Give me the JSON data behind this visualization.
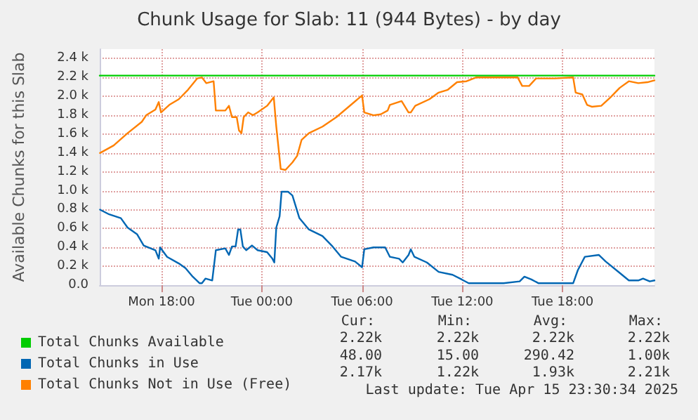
{
  "chart_data": {
    "type": "line",
    "title": "Chunk Usage for Slab: 11 (944 Bytes) - by day",
    "ylabel": "Available Chunks for this Slab",
    "xlim": [
      "2025-04-14T14:18",
      "2025-04-15T23:30"
    ],
    "xticks": [
      {
        "value": "2025-04-14T18:00",
        "label": "Mon 18:00"
      },
      {
        "value": "2025-04-15T00:00",
        "label": "Tue 00:00"
      },
      {
        "value": "2025-04-15T06:00",
        "label": "Tue 06:00"
      },
      {
        "value": "2025-04-15T12:00",
        "label": "Tue 12:00"
      },
      {
        "value": "2025-04-15T18:00",
        "label": "Tue 18:00"
      }
    ],
    "ylim": [
      0,
      2500
    ],
    "yticks": [
      {
        "value": 0,
        "label": "0.0"
      },
      {
        "value": 200,
        "label": "0.2 k"
      },
      {
        "value": 400,
        "label": "0.4 k"
      },
      {
        "value": 600,
        "label": "0.6 k"
      },
      {
        "value": 800,
        "label": "0.8 k"
      },
      {
        "value": 1000,
        "label": "1.0 k"
      },
      {
        "value": 1200,
        "label": "1.2 k"
      },
      {
        "value": 1400,
        "label": "1.4 k"
      },
      {
        "value": 1600,
        "label": "1.6 k"
      },
      {
        "value": 1800,
        "label": "1.8 k"
      },
      {
        "value": 2000,
        "label": "2.0 k"
      },
      {
        "value": 2200,
        "label": "2.2 k"
      },
      {
        "value": 2400,
        "label": "2.4 k"
      }
    ],
    "grid": true,
    "legend": "bottom left",
    "marker": "none",
    "line_style": "solid",
    "series": [
      {
        "name": "Total Chunks Available",
        "color": "#00cc00",
        "x": [
          "2025-04-14T14:18",
          "2025-04-15T23:30"
        ],
        "values": [
          2220,
          2220
        ]
      },
      {
        "name": "Total Chunks in Use",
        "color": "#0066b3",
        "x": [
          "2025-04-14T14:19",
          "2025-04-14T14:52",
          "2025-04-14T15:34",
          "2025-04-14T15:58",
          "2025-04-14T16:32",
          "2025-04-14T16:56",
          "2025-04-14T17:38",
          "2025-04-14T17:50",
          "2025-04-14T17:55",
          "2025-04-14T18:20",
          "2025-04-14T19:02",
          "2025-04-14T19:26",
          "2025-04-14T19:52",
          "2025-04-14T20:17",
          "2025-04-14T20:25",
          "2025-04-14T20:38",
          "2025-04-14T21:02",
          "2025-04-14T21:15",
          "2025-04-14T21:49",
          "2025-04-14T22:02",
          "2025-04-14T22:13",
          "2025-04-14T22:26",
          "2025-04-14T22:35",
          "2025-04-14T22:43",
          "2025-04-14T22:52",
          "2025-04-14T23:04",
          "2025-04-14T23:25",
          "2025-04-14T23:45",
          "2025-04-15T00:19",
          "2025-04-15T00:38",
          "2025-04-15T00:45",
          "2025-04-15T00:52",
          "2025-04-15T01:04",
          "2025-04-15T01:11",
          "2025-04-15T01:34",
          "2025-04-15T01:50",
          "2025-04-15T02:15",
          "2025-04-15T02:49",
          "2025-04-15T03:38",
          "2025-04-15T04:11",
          "2025-04-15T04:45",
          "2025-04-15T05:35",
          "2025-04-15T06:00",
          "2025-04-15T06:08",
          "2025-04-15T06:41",
          "2025-04-15T07:23",
          "2025-04-15T07:40",
          "2025-04-15T08:13",
          "2025-04-15T08:26",
          "2025-04-15T08:47",
          "2025-04-15T08:55",
          "2025-04-15T09:08",
          "2025-04-15T09:53",
          "2025-04-15T10:35",
          "2025-04-15T11:25",
          "2025-04-15T11:58",
          "2025-04-15T12:23",
          "2025-04-15T13:47",
          "2025-04-15T14:04",
          "2025-04-15T14:28",
          "2025-04-15T15:26",
          "2025-04-15T15:43",
          "2025-04-15T16:08",
          "2025-04-15T16:34",
          "2025-04-15T18:38",
          "2025-04-15T18:55",
          "2025-04-15T19:20",
          "2025-04-15T20:10",
          "2025-04-15T20:35",
          "2025-04-15T21:25",
          "2025-04-15T21:58",
          "2025-04-15T22:32",
          "2025-04-15T22:49",
          "2025-04-15T23:13",
          "2025-04-15T23:30"
        ],
        "values": [
          800,
          750,
          710,
          610,
          540,
          420,
          370,
          280,
          400,
          300,
          230,
          180,
          90,
          20,
          20,
          70,
          50,
          370,
          390,
          320,
          410,
          410,
          590,
          590,
          410,
          370,
          420,
          370,
          350,
          280,
          240,
          610,
          730,
          990,
          990,
          950,
          710,
          590,
          520,
          420,
          300,
          250,
          190,
          380,
          400,
          400,
          300,
          280,
          240,
          320,
          380,
          300,
          240,
          140,
          110,
          60,
          20,
          20,
          20,
          20,
          40,
          90,
          60,
          20,
          20,
          160,
          300,
          320,
          250,
          130,
          50,
          50,
          70,
          40,
          50
        ]
      },
      {
        "name": "Total Chunks Not in Use (Free)",
        "color": "#ff8000",
        "x": [
          "2025-04-14T14:19",
          "2025-04-14T15:08",
          "2025-04-14T15:58",
          "2025-04-14T16:49",
          "2025-04-14T17:05",
          "2025-04-14T17:38",
          "2025-04-14T17:50",
          "2025-04-14T17:58",
          "2025-04-14T18:28",
          "2025-04-14T19:02",
          "2025-04-14T19:35",
          "2025-04-14T20:08",
          "2025-04-14T20:25",
          "2025-04-14T20:41",
          "2025-04-14T21:07",
          "2025-04-14T21:15",
          "2025-04-14T21:49",
          "2025-04-14T22:02",
          "2025-04-14T22:13",
          "2025-04-14T22:30",
          "2025-04-14T22:38",
          "2025-04-14T22:47",
          "2025-04-14T22:55",
          "2025-04-14T23:11",
          "2025-04-14T23:28",
          "2025-04-14T23:45",
          "2025-04-15T00:19",
          "2025-04-15T00:43",
          "2025-04-15T00:52",
          "2025-04-15T01:08",
          "2025-04-15T01:25",
          "2025-04-15T01:50",
          "2025-04-15T02:07",
          "2025-04-15T02:23",
          "2025-04-15T02:49",
          "2025-04-15T03:38",
          "2025-04-15T04:28",
          "2025-04-15T05:52",
          "2025-04-15T06:00",
          "2025-04-15T06:08",
          "2025-04-15T06:41",
          "2025-04-15T07:07",
          "2025-04-15T07:32",
          "2025-04-15T07:40",
          "2025-04-15T08:22",
          "2025-04-15T08:47",
          "2025-04-15T08:55",
          "2025-04-15T09:11",
          "2025-04-15T10:02",
          "2025-04-15T10:35",
          "2025-04-15T11:08",
          "2025-04-15T11:41",
          "2025-04-15T12:15",
          "2025-04-15T12:49",
          "2025-04-15T13:55",
          "2025-04-15T15:19",
          "2025-04-15T15:35",
          "2025-04-15T16:00",
          "2025-04-15T16:25",
          "2025-04-15T17:32",
          "2025-04-15T18:38",
          "2025-04-15T18:47",
          "2025-04-15T19:11",
          "2025-04-15T19:28",
          "2025-04-15T19:45",
          "2025-04-15T20:19",
          "2025-04-15T20:52",
          "2025-04-15T21:25",
          "2025-04-15T21:58",
          "2025-04-15T22:32",
          "2025-04-15T23:05",
          "2025-04-15T23:30"
        ],
        "values": [
          1400,
          1480,
          1610,
          1730,
          1800,
          1860,
          1940,
          1830,
          1910,
          1970,
          2070,
          2190,
          2200,
          2140,
          2160,
          1850,
          1850,
          1900,
          1780,
          1780,
          1640,
          1610,
          1780,
          1830,
          1800,
          1830,
          1900,
          1990,
          1680,
          1230,
          1220,
          1300,
          1370,
          1540,
          1610,
          1680,
          1780,
          1990,
          2010,
          1830,
          1800,
          1810,
          1850,
          1910,
          1950,
          1830,
          1830,
          1900,
          1970,
          2040,
          2070,
          2150,
          2160,
          2200,
          2200,
          2200,
          2110,
          2110,
          2190,
          2190,
          2200,
          2040,
          2020,
          1910,
          1890,
          1900,
          1990,
          2090,
          2160,
          2140,
          2150,
          2170
        ]
      }
    ],
    "annotations": [
      "Cur:",
      "Min:",
      "Avg:",
      "Max:",
      "2.22k",
      "2.22k",
      "2.22k",
      "2.22k",
      "48.00",
      "15.00",
      "290.42",
      "1.00k",
      "2.17k",
      "1.22k",
      "1.93k",
      "2.21k",
      "Last update: Tue Apr 15 23:30:34 2025"
    ]
  }
}
